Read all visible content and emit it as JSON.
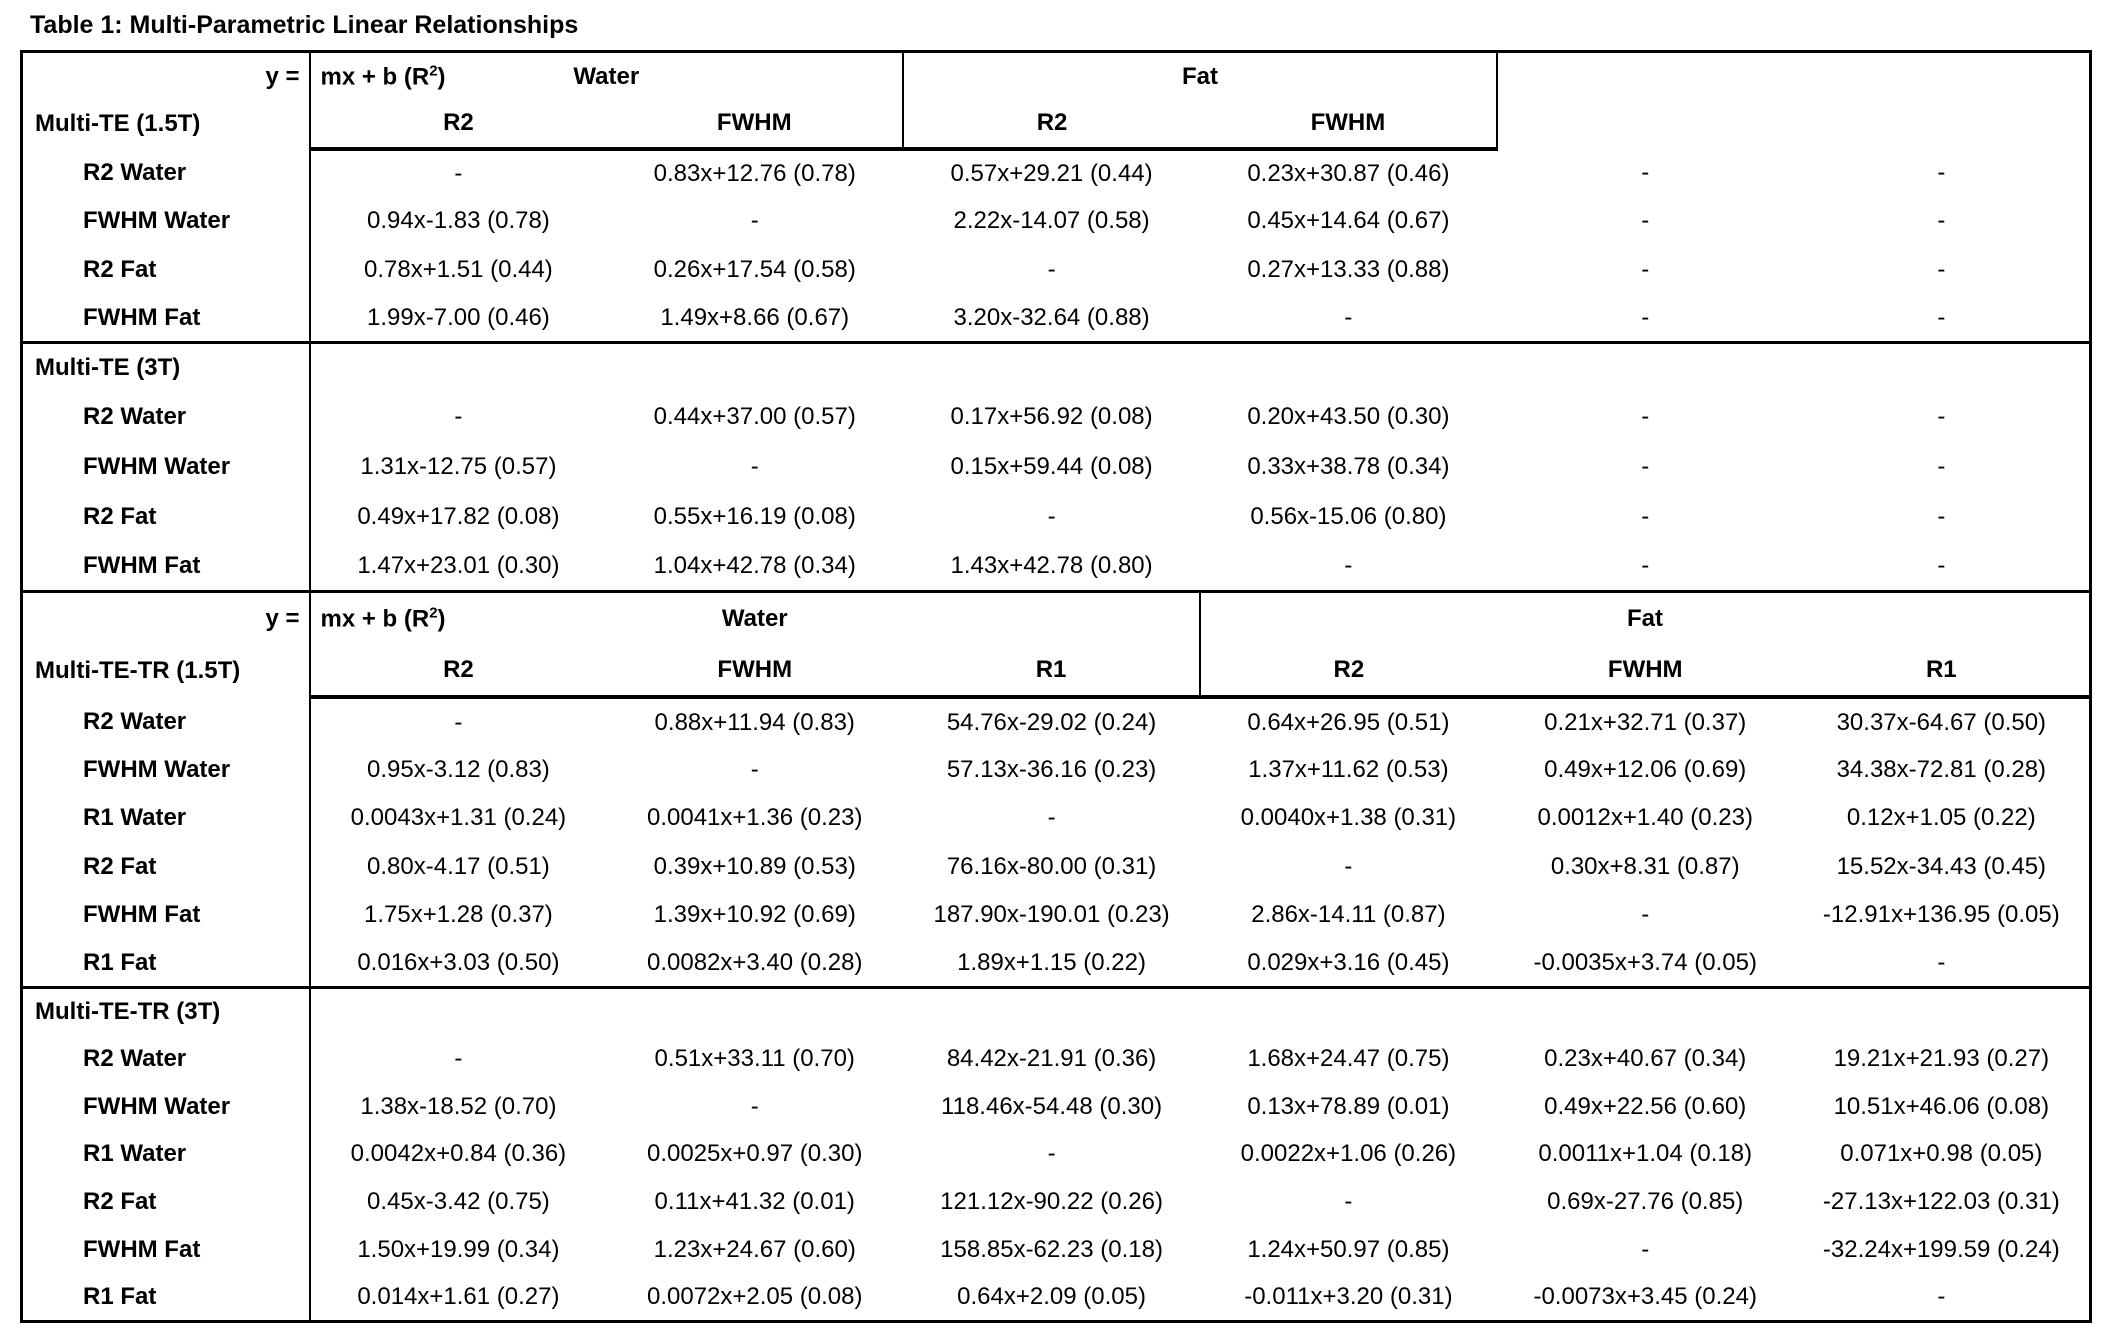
{
  "title": "Table 1: Multi-Parametric Linear Relationships",
  "table": {
    "empty_value": "-",
    "sections": [
      {
        "name": "Multi-TE (1.5T)",
        "header": {
          "y_eq": "y =",
          "formula": {
            "pre": "mx + b (R",
            "sup": "2",
            "post": ")"
          },
          "groups": [
            {
              "label": "Water",
              "span": 2
            },
            {
              "label": "Fat",
              "span": 2
            },
            {
              "label": "",
              "span": 2
            }
          ],
          "col_headers": [
            "R2",
            "FWHM",
            "R2",
            "FWHM"
          ]
        },
        "rows": [
          {
            "label": "R2 Water",
            "cells": [
              "-",
              "0.83x+12.76 (0.78)",
              "0.57x+29.21 (0.44)",
              "0.23x+30.87 (0.46)",
              "-",
              "-"
            ]
          },
          {
            "label": "FWHM Water",
            "cells": [
              "0.94x-1.83 (0.78)",
              "-",
              "2.22x-14.07 (0.58)",
              "0.45x+14.64 (0.67)",
              "-",
              "-"
            ]
          },
          {
            "label": "R2 Fat",
            "cells": [
              "0.78x+1.51 (0.44)",
              "0.26x+17.54 (0.58)",
              "-",
              "0.27x+13.33 (0.88)",
              "-",
              "-"
            ]
          },
          {
            "label": "FWHM Fat",
            "cells": [
              "1.99x-7.00 (0.46)",
              "1.49x+8.66 (0.67)",
              "3.20x-32.64 (0.88)",
              "-",
              "-",
              "-"
            ]
          }
        ]
      },
      {
        "name": "Multi-TE (3T)",
        "rows": [
          {
            "label": "R2 Water",
            "cells": [
              "-",
              "0.44x+37.00 (0.57)",
              "0.17x+56.92 (0.08)",
              "0.20x+43.50 (0.30)",
              "-",
              "-"
            ]
          },
          {
            "label": "FWHM Water",
            "cells": [
              "1.31x-12.75 (0.57)",
              "-",
              "0.15x+59.44 (0.08)",
              "0.33x+38.78 (0.34)",
              "-",
              "-"
            ]
          },
          {
            "label": "R2 Fat",
            "cells": [
              "0.49x+17.82 (0.08)",
              "0.55x+16.19 (0.08)",
              "-",
              "0.56x-15.06 (0.80)",
              "-",
              "-"
            ]
          },
          {
            "label": "FWHM Fat",
            "cells": [
              "1.47x+23.01 (0.30)",
              "1.04x+42.78 (0.34)",
              "1.43x+42.78 (0.80)",
              "-",
              "-",
              "-"
            ]
          }
        ]
      },
      {
        "name": "Multi-TE-TR (1.5T)",
        "header": {
          "y_eq": "y =",
          "formula": {
            "pre": "mx + b (R",
            "sup": "2",
            "post": ")"
          },
          "groups": [
            {
              "label": "Water",
              "span": 3
            },
            {
              "label": "Fat",
              "span": 3
            }
          ],
          "col_headers": [
            "R2",
            "FWHM",
            "R1",
            "R2",
            "FWHM",
            "R1"
          ]
        },
        "rows": [
          {
            "label": "R2 Water",
            "cells": [
              "-",
              "0.88x+11.94 (0.83)",
              "54.76x-29.02 (0.24)",
              "0.64x+26.95 (0.51)",
              "0.21x+32.71 (0.37)",
              "30.37x-64.67 (0.50)"
            ]
          },
          {
            "label": "FWHM Water",
            "cells": [
              "0.95x-3.12 (0.83)",
              "-",
              "57.13x-36.16 (0.23)",
              "1.37x+11.62 (0.53)",
              "0.49x+12.06 (0.69)",
              "34.38x-72.81 (0.28)"
            ]
          },
          {
            "label": "R1 Water",
            "cells": [
              "0.0043x+1.31 (0.24)",
              "0.0041x+1.36 (0.23)",
              "-",
              "0.0040x+1.38 (0.31)",
              "0.0012x+1.40 (0.23)",
              "0.12x+1.05 (0.22)"
            ]
          },
          {
            "label": "R2 Fat",
            "cells": [
              "0.80x-4.17 (0.51)",
              "0.39x+10.89 (0.53)",
              "76.16x-80.00 (0.31)",
              "-",
              "0.30x+8.31 (0.87)",
              "15.52x-34.43 (0.45)"
            ]
          },
          {
            "label": "FWHM Fat",
            "cells": [
              "1.75x+1.28 (0.37)",
              "1.39x+10.92 (0.69)",
              "187.90x-190.01 (0.23)",
              "2.86x-14.11 (0.87)",
              "-",
              "-12.91x+136.95 (0.05)"
            ]
          },
          {
            "label": "R1 Fat",
            "cells": [
              "0.016x+3.03 (0.50)",
              "0.0082x+3.40 (0.28)",
              "1.89x+1.15 (0.22)",
              "0.029x+3.16 (0.45)",
              "-0.0035x+3.74 (0.05)",
              "-"
            ]
          }
        ]
      },
      {
        "name": "Multi-TE-TR (3T)",
        "rows": [
          {
            "label": "R2 Water",
            "cells": [
              "-",
              "0.51x+33.11 (0.70)",
              "84.42x-21.91 (0.36)",
              "1.68x+24.47 (0.75)",
              "0.23x+40.67 (0.34)",
              "19.21x+21.93 (0.27)"
            ]
          },
          {
            "label": "FWHM Water",
            "cells": [
              "1.38x-18.52 (0.70)",
              "-",
              "118.46x-54.48 (0.30)",
              "0.13x+78.89 (0.01)",
              "0.49x+22.56 (0.60)",
              "10.51x+46.06 (0.08)"
            ]
          },
          {
            "label": "R1 Water",
            "cells": [
              "0.0042x+0.84 (0.36)",
              "0.0025x+0.97 (0.30)",
              "-",
              "0.0022x+1.06 (0.26)",
              "0.0011x+1.04 (0.18)",
              "0.071x+0.98 (0.05)"
            ]
          },
          {
            "label": "R2 Fat",
            "cells": [
              "0.45x-3.42 (0.75)",
              "0.11x+41.32 (0.01)",
              "121.12x-90.22 (0.26)",
              "-",
              "0.69x-27.76 (0.85)",
              "-27.13x+122.03 (0.31)"
            ]
          },
          {
            "label": "FWHM Fat",
            "cells": [
              "1.50x+19.99 (0.34)",
              "1.23x+24.67 (0.60)",
              "158.85x-62.23 (0.18)",
              "1.24x+50.97 (0.85)",
              "-",
              "-32.24x+199.59 (0.24)"
            ]
          },
          {
            "label": "R1 Fat",
            "cells": [
              "0.014x+1.61 (0.27)",
              "0.0072x+2.05 (0.08)",
              "0.64x+2.09 (0.05)",
              "-0.011x+3.20 (0.31)",
              "-0.0073x+3.45 (0.24)",
              "-"
            ]
          }
        ]
      }
    ]
  }
}
